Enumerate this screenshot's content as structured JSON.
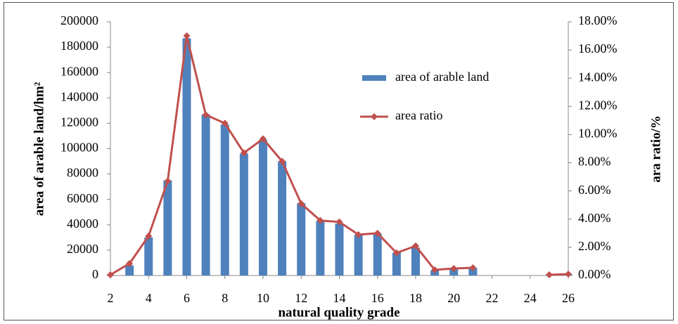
{
  "chart_data": {
    "type": "bar-line",
    "x_label": "natural quality grade",
    "y_label": "area of arable land/hm²",
    "y2_label": "ara ratio/%",
    "x": [
      2,
      3,
      4,
      5,
      6,
      7,
      8,
      9,
      10,
      11,
      12,
      13,
      14,
      15,
      16,
      17,
      18,
      19,
      20,
      21,
      22,
      23,
      24,
      25,
      26
    ],
    "xlim": [
      2,
      26
    ],
    "xticks": [
      2,
      4,
      6,
      8,
      10,
      12,
      14,
      16,
      18,
      20,
      22,
      24,
      26
    ],
    "ylim": [
      0,
      200000
    ],
    "yticks": [
      0,
      20000,
      40000,
      60000,
      80000,
      100000,
      120000,
      140000,
      160000,
      180000,
      200000
    ],
    "y2lim": [
      0,
      18
    ],
    "y2ticks": [
      {
        "value": 0,
        "label": "0.00%"
      },
      {
        "value": 2,
        "label": "2.00%"
      },
      {
        "value": 4,
        "label": "4.00%"
      },
      {
        "value": 6,
        "label": "6.00%"
      },
      {
        "value": 8,
        "label": "8.00%"
      },
      {
        "value": 10,
        "label": "10.00%"
      },
      {
        "value": 12,
        "label": "12.00%"
      },
      {
        "value": 14,
        "label": "14.00%"
      },
      {
        "value": 16,
        "label": "16.00%"
      },
      {
        "value": 18,
        "label": "18.00%"
      }
    ],
    "series": [
      {
        "name": "area of arable land",
        "kind": "bar",
        "color": "#4f81bd",
        "values": [
          300,
          8000,
          30000,
          75000,
          187000,
          127000,
          119000,
          96000,
          107000,
          90000,
          57000,
          43000,
          41000,
          32000,
          33000,
          18000,
          22000,
          4000,
          5000,
          6000,
          null,
          null,
          null,
          300,
          800
        ]
      },
      {
        "name": "area ratio",
        "kind": "line",
        "axis": "y2",
        "color": "#c0504d",
        "values": [
          0.05,
          0.85,
          2.8,
          6.7,
          17.0,
          11.4,
          10.8,
          8.7,
          9.7,
          8.1,
          5.1,
          3.9,
          3.8,
          2.9,
          3.0,
          1.6,
          2.1,
          0.4,
          0.5,
          0.55,
          null,
          null,
          null,
          0.05,
          0.1
        ]
      }
    ]
  }
}
